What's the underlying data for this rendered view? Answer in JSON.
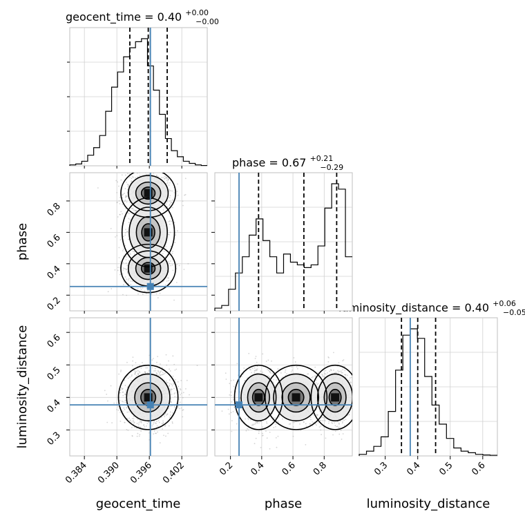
{
  "truth_color": "#4682b4",
  "chart_data": {
    "type": "corner",
    "parameters": [
      "geocent_time",
      "phase",
      "luminosity_distance"
    ],
    "truths": {
      "geocent_time": 0.3962,
      "phase": 0.255,
      "luminosity_distance": 0.377
    },
    "titles": {
      "geocent_time": {
        "name": "geocent_time",
        "median": "0.40",
        "plus": "+0.00",
        "minus": "−0.00"
      },
      "phase": {
        "name": "phase",
        "median": "0.67",
        "plus": "+0.21",
        "minus": "−0.29"
      },
      "luminosity_distance": {
        "name": "luminosity_distance",
        "median": "0.40",
        "plus": "+0.06",
        "minus": "−0.05"
      }
    },
    "ranges": {
      "geocent_time": [
        0.3813,
        0.4067
      ],
      "phase": [
        0.1,
        0.98
      ],
      "luminosity_distance": [
        0.22,
        0.645
      ]
    },
    "ticks": {
      "geocent_time": {
        "values": [
          0.384,
          0.39,
          0.396,
          0.402
        ],
        "labels": [
          "0.384",
          "0.390",
          "0.396",
          "0.402"
        ]
      },
      "phase_y": {
        "values": [
          0.2,
          0.4,
          0.6,
          0.8
        ],
        "labels": [
          "0.2",
          "0.4",
          "0.6",
          "0.8"
        ]
      },
      "phase_x": {
        "values": [
          0.2,
          0.4,
          0.6,
          0.8
        ],
        "labels": [
          "0.2",
          "0.4",
          "0.6",
          "0.8"
        ]
      },
      "luminosity_distance_y": {
        "values": [
          0.3,
          0.4,
          0.5,
          0.6
        ],
        "labels": [
          "0.3",
          "0.4",
          "0.5",
          "0.6"
        ]
      },
      "luminosity_distance_x": {
        "values": [
          0.3,
          0.4,
          0.5,
          0.6
        ],
        "labels": [
          "0.3",
          "0.4",
          "0.5",
          "0.6"
        ]
      }
    },
    "quantiles": {
      "geocent_time": [
        0.3924,
        0.3958,
        0.3993
      ],
      "phase": [
        0.38,
        0.67,
        0.88
      ],
      "luminosity_distance": [
        0.35,
        0.4,
        0.455
      ]
    },
    "hist_1d": {
      "geocent_time": [
        0.3,
        0.6,
        1.5,
        3.5,
        6,
        10,
        18,
        26,
        31,
        36,
        39,
        41,
        42,
        33,
        25,
        17,
        9,
        5,
        3,
        1.5,
        0.8,
        0.3,
        0.1
      ],
      "phase": [
        1,
        2,
        8,
        14,
        20,
        28,
        34,
        26,
        20,
        14,
        21,
        18,
        17,
        16,
        17,
        24,
        38,
        47,
        45,
        20
      ],
      "luminosity_distance": [
        0.5,
        1.5,
        3,
        6,
        14,
        27,
        38,
        40,
        37,
        25,
        16,
        10,
        5.5,
        2.5,
        1.5,
        1,
        0.5,
        0.3,
        0.2
      ]
    },
    "xlabel": [
      "geocent_time",
      "phase",
      "luminosity_distance"
    ],
    "ylabel": [
      "phase",
      "luminosity_distance"
    ],
    "grid": true
  }
}
